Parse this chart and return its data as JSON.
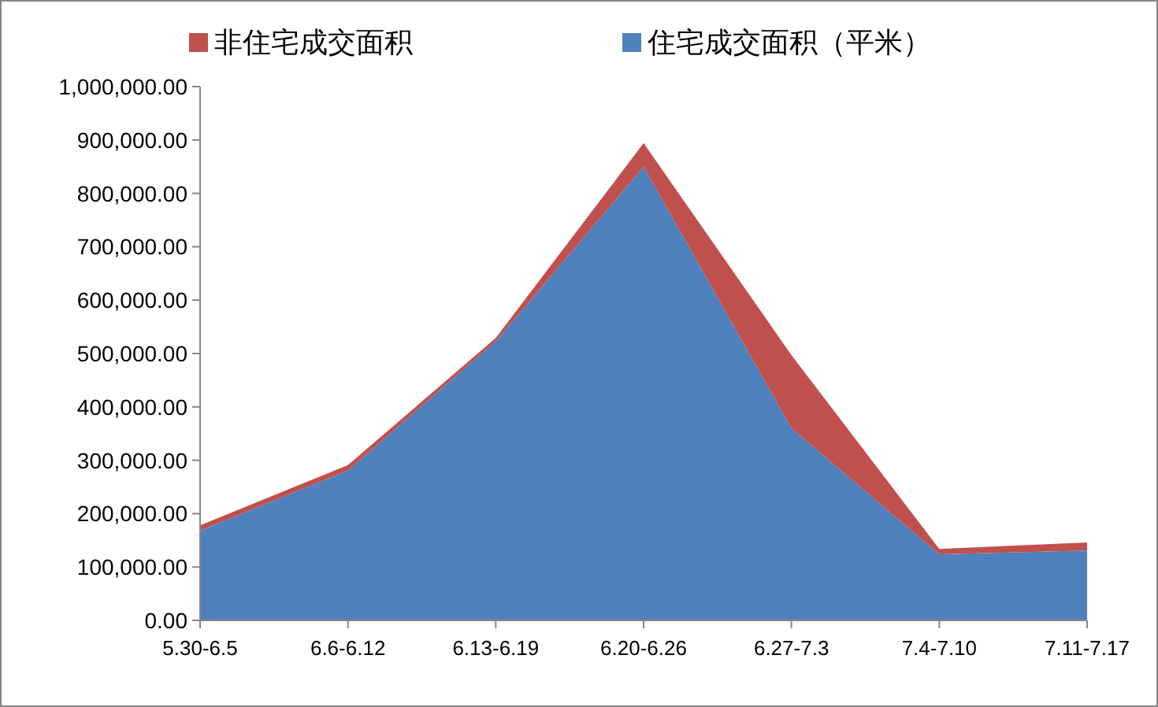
{
  "chart_data": {
    "type": "area",
    "stacked": true,
    "legend": "top",
    "grid": false,
    "categories": [
      "5.30-6.5",
      "6.6-6.12",
      "6.13-6.19",
      "6.20-6.26",
      "6.27-7.3",
      "7.4-7.10",
      "7.11-7.17"
    ],
    "series": [
      {
        "name": "住宅成交面积（平米）",
        "color": "#4f81bd",
        "values": [
          168000,
          281000,
          523000,
          850000,
          360000,
          124000,
          131000
        ]
      },
      {
        "name": "非住宅成交面积",
        "color": "#c0504d",
        "values": [
          10000,
          10000,
          6000,
          44000,
          137000,
          10000,
          15000
        ]
      }
    ],
    "ylim": [
      0,
      1000000
    ],
    "yticks": [
      {
        "value": 0,
        "label": "0.00"
      },
      {
        "value": 100000,
        "label": "100,000.00"
      },
      {
        "value": 200000,
        "label": "200,000.00"
      },
      {
        "value": 300000,
        "label": "300,000.00"
      },
      {
        "value": 400000,
        "label": "400,000.00"
      },
      {
        "value": 500000,
        "label": "500,000.00"
      },
      {
        "value": 600000,
        "label": "600,000.00"
      },
      {
        "value": 700000,
        "label": "700,000.00"
      },
      {
        "value": 800000,
        "label": "800,000.00"
      },
      {
        "value": 900000,
        "label": "900,000.00"
      },
      {
        "value": 1000000,
        "label": "1,000,000.00"
      }
    ]
  }
}
